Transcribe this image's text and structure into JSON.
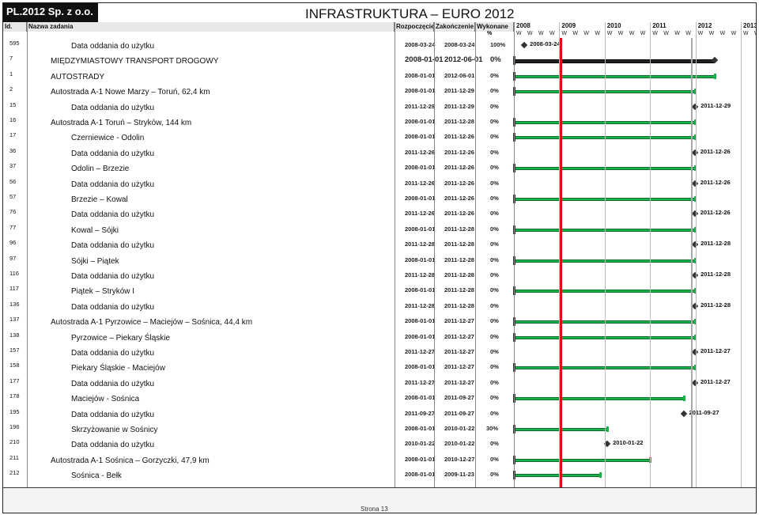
{
  "company": "PL.2012 Sp. z o.o.",
  "title": "INFRASTRUKTURA – EURO 2012",
  "columns": {
    "id": "Id.",
    "name": "Nazwa zadania",
    "start": "Rozpoczęcie",
    "end": "Zakończenie",
    "done": "Wykonane",
    "done_unit": "%"
  },
  "years": [
    "2008",
    "2009",
    "2010",
    "2011",
    "2012",
    "2013"
  ],
  "week_letter": "W",
  "rows": [
    {
      "id": "595",
      "name": "Data oddania do użytku",
      "start": "2008-03-24",
      "end": "2008-03-24",
      "pct": "100%",
      "milestone_label": "2008-03-24"
    },
    {
      "id": "7",
      "name": "MIĘDZYMIASTOWY TRANSPORT DROGOWY",
      "start": "2008-01-01",
      "end": "2012-06-01",
      "pct": "0%"
    },
    {
      "id": "1",
      "name": "AUTOSTRADY",
      "start": "2008-01-01",
      "end": "2012-06-01",
      "pct": "0%"
    },
    {
      "id": "2",
      "name": "Autostrada A-1 Nowe Marzy – Toruń, 62,4 km",
      "start": "2008-01-01",
      "end": "2011-12-29",
      "pct": "0%"
    },
    {
      "id": "15",
      "name": "Data oddania do użytku",
      "start": "2011-12-29",
      "end": "2011-12-29",
      "pct": "0%",
      "milestone_label": "2011-12-29"
    },
    {
      "id": "16",
      "name": "Autostrada A-1 Toruń – Stryków, 144 km",
      "start": "2008-01-01",
      "end": "2011-12-28",
      "pct": "0%"
    },
    {
      "id": "17",
      "name": "Czerniewice - Odolin",
      "start": "2008-01-01",
      "end": "2011-12-26",
      "pct": "0%"
    },
    {
      "id": "36",
      "name": "Data oddania do użytku",
      "start": "2011-12-26",
      "end": "2011-12-26",
      "pct": "0%",
      "milestone_label": "2011-12-26"
    },
    {
      "id": "37",
      "name": "Odolin – Brzezie",
      "start": "2008-01-01",
      "end": "2011-12-26",
      "pct": "0%"
    },
    {
      "id": "56",
      "name": "Data oddania do użytku",
      "start": "2011-12-26",
      "end": "2011-12-26",
      "pct": "0%",
      "milestone_label": "2011-12-26"
    },
    {
      "id": "57",
      "name": "Brzezie – Kowal",
      "start": "2008-01-01",
      "end": "2011-12-26",
      "pct": "0%"
    },
    {
      "id": "76",
      "name": "Data oddania do użytku",
      "start": "2011-12-26",
      "end": "2011-12-26",
      "pct": "0%",
      "milestone_label": "2011-12-26"
    },
    {
      "id": "77",
      "name": "Kowal – Sójki",
      "start": "2008-01-01",
      "end": "2011-12-28",
      "pct": "0%"
    },
    {
      "id": "96",
      "name": "Data oddania do użytku",
      "start": "2011-12-28",
      "end": "2011-12-28",
      "pct": "0%",
      "milestone_label": "2011-12-28"
    },
    {
      "id": "97",
      "name": "Sójki – Piątek",
      "start": "2008-01-01",
      "end": "2011-12-28",
      "pct": "0%"
    },
    {
      "id": "116",
      "name": "Data oddania do użytku",
      "start": "2011-12-28",
      "end": "2011-12-28",
      "pct": "0%",
      "milestone_label": "2011-12-28"
    },
    {
      "id": "117",
      "name": "Piątek – Stryków I",
      "start": "2008-01-01",
      "end": "2011-12-28",
      "pct": "0%"
    },
    {
      "id": "136",
      "name": "Data oddania do użytku",
      "start": "2011-12-28",
      "end": "2011-12-28",
      "pct": "0%",
      "milestone_label": "2011-12-28"
    },
    {
      "id": "137",
      "name": "Autostrada A-1 Pyrzowice – Maciejów – Sośnica, 44,4 km",
      "start": "2008-01-01",
      "end": "2011-12-27",
      "pct": "0%"
    },
    {
      "id": "138",
      "name": "Pyrzowice – Piekary Śląskie",
      "start": "2008-01-01",
      "end": "2011-12-27",
      "pct": "0%"
    },
    {
      "id": "157",
      "name": "Data oddania do użytku",
      "start": "2011-12-27",
      "end": "2011-12-27",
      "pct": "0%",
      "milestone_label": "2011-12-27"
    },
    {
      "id": "158",
      "name": "Piekary Śląskie - Maciejów",
      "start": "2008-01-01",
      "end": "2011-12-27",
      "pct": "0%"
    },
    {
      "id": "177",
      "name": "Data oddania do użytku",
      "start": "2011-12-27",
      "end": "2011-12-27",
      "pct": "0%",
      "milestone_label": "2011-12-27"
    },
    {
      "id": "178",
      "name": "Maciejów - Sośnica",
      "start": "2008-01-01",
      "end": "2011-09-27",
      "pct": "0%"
    },
    {
      "id": "195",
      "name": "Data oddania do użytku",
      "start": "2011-09-27",
      "end": "2011-09-27",
      "pct": "0%",
      "milestone_label": "2011-09-27"
    },
    {
      "id": "196",
      "name": "Skrzyżowanie w Sośnicy",
      "start": "2008-01-01",
      "end": "2010-01-22",
      "pct": "30%"
    },
    {
      "id": "210",
      "name": "Data oddania do użytku",
      "start": "2010-01-22",
      "end": "2010-01-22",
      "pct": "0%",
      "milestone_label": "2010-01-22"
    },
    {
      "id": "211",
      "name": "Autostrada A-1 Sośnica – Gorzyczki, 47,9 km",
      "start": "2008-01-01",
      "end": "2010-12-27",
      "pct": "0%"
    },
    {
      "id": "212",
      "name": "Sośnica - Bełk",
      "start": "2008-01-01",
      "end": "2009-11-23",
      "pct": "0%"
    }
  ],
  "footer": {
    "page": "Strona 13"
  },
  "colors": {
    "bar": "#19b24a",
    "today_line": "#d11111",
    "summary_bar": "#222222"
  }
}
